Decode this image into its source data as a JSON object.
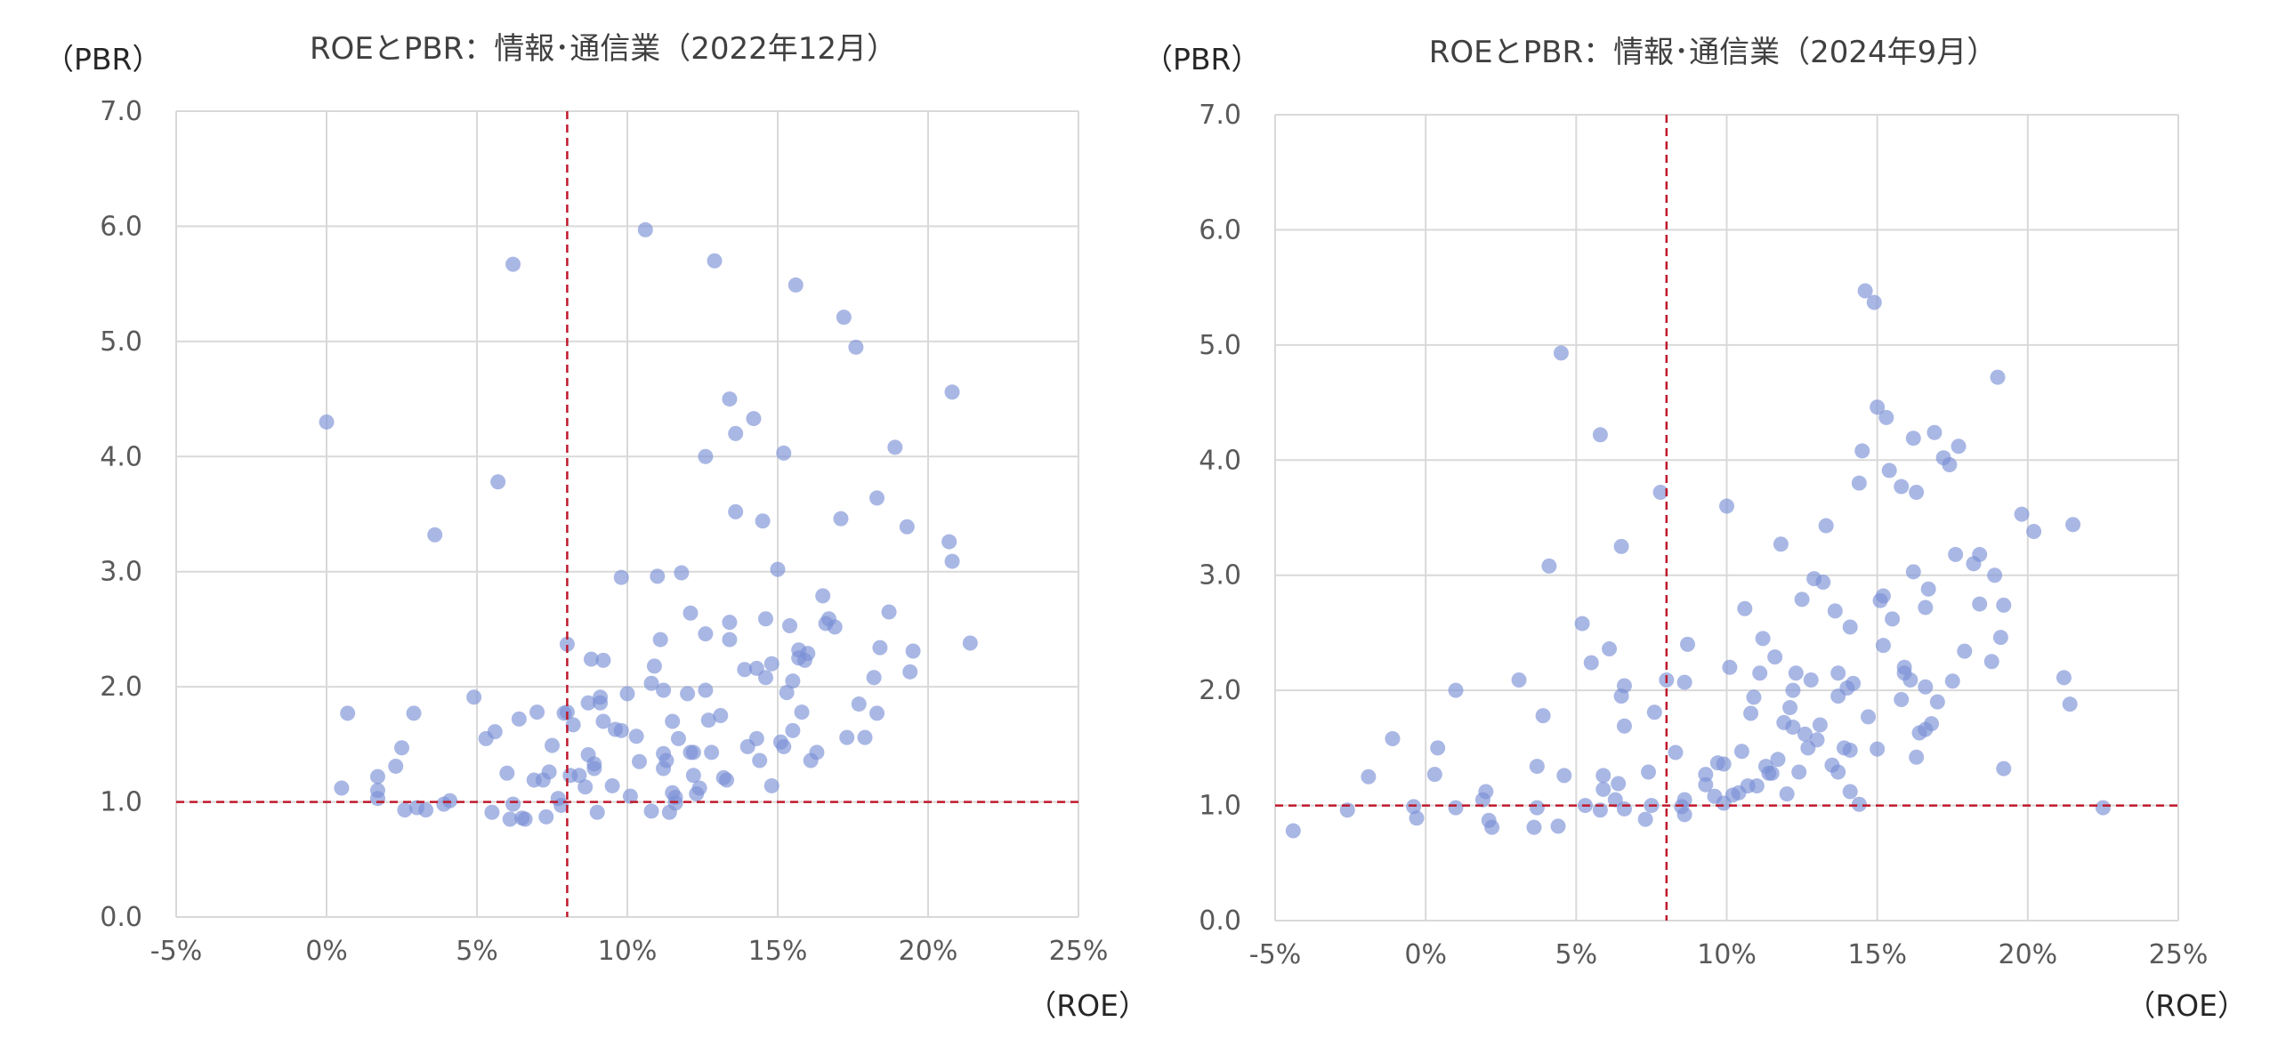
{
  "chart_data": [
    {
      "type": "scatter",
      "title": "ROEとPBR：情報･通信業（2022年12月）",
      "xlabel": "（ROE）",
      "ylabel": "（PBR）",
      "xlim": [
        -5,
        25
      ],
      "ylim": [
        0,
        7
      ],
      "x_ticks": [
        -5,
        0,
        5,
        10,
        15,
        20,
        25
      ],
      "y_ticks": [
        0,
        1,
        2,
        3,
        4,
        5,
        6,
        7
      ],
      "x_tick_labels": [
        "-5%",
        "0%",
        "5%",
        "10%",
        "15%",
        "20%",
        "25%"
      ],
      "y_tick_labels": [
        "0.0",
        "1.0",
        "2.0",
        "3.0",
        "4.0",
        "5.0",
        "6.0",
        "7.0"
      ],
      "grid": "vertical",
      "reference_lines": {
        "x": 8,
        "y": 1.0
      },
      "colors": {
        "points": "#7b91d6",
        "reference": "#c0192c",
        "grid": "#d9d9d9"
      },
      "points": [
        [
          0.0,
          4.3
        ],
        [
          0.5,
          1.12
        ],
        [
          0.7,
          1.77
        ],
        [
          1.7,
          1.22
        ],
        [
          1.7,
          1.1
        ],
        [
          1.7,
          1.03
        ],
        [
          2.3,
          1.31
        ],
        [
          2.5,
          1.47
        ],
        [
          2.6,
          0.93
        ],
        [
          2.9,
          1.77
        ],
        [
          3.0,
          0.95
        ],
        [
          3.3,
          0.93
        ],
        [
          3.6,
          3.32
        ],
        [
          3.9,
          0.98
        ],
        [
          4.1,
          1.01
        ],
        [
          4.9,
          1.91
        ],
        [
          5.3,
          1.55
        ],
        [
          5.5,
          0.91
        ],
        [
          5.6,
          1.61
        ],
        [
          5.7,
          3.78
        ],
        [
          6.0,
          1.25
        ],
        [
          6.1,
          0.85
        ],
        [
          6.2,
          5.67
        ],
        [
          6.2,
          0.98
        ],
        [
          6.4,
          1.72
        ],
        [
          6.5,
          0.86
        ],
        [
          6.6,
          0.85
        ],
        [
          6.9,
          1.19
        ],
        [
          7.0,
          1.78
        ],
        [
          7.2,
          1.19
        ],
        [
          7.3,
          0.87
        ],
        [
          7.4,
          1.26
        ],
        [
          7.5,
          1.49
        ],
        [
          7.7,
          1.03
        ],
        [
          7.8,
          0.97
        ],
        [
          7.9,
          1.77
        ],
        [
          8.0,
          1.78
        ],
        [
          8.0,
          2.37
        ],
        [
          8.1,
          1.23
        ],
        [
          8.2,
          1.67
        ],
        [
          8.4,
          1.23
        ],
        [
          8.6,
          1.13
        ],
        [
          8.7,
          1.86
        ],
        [
          8.7,
          1.41
        ],
        [
          8.8,
          2.24
        ],
        [
          8.9,
          1.33
        ],
        [
          8.9,
          1.29
        ],
        [
          9.0,
          0.91
        ],
        [
          9.1,
          1.86
        ],
        [
          9.1,
          1.91
        ],
        [
          9.2,
          2.23
        ],
        [
          9.2,
          1.7
        ],
        [
          9.5,
          1.14
        ],
        [
          9.8,
          2.95
        ],
        [
          9.8,
          1.62
        ],
        [
          10.0,
          1.94
        ],
        [
          10.1,
          1.05
        ],
        [
          10.3,
          1.57
        ],
        [
          10.4,
          1.35
        ],
        [
          10.6,
          5.97
        ],
        [
          10.8,
          0.92
        ],
        [
          10.8,
          2.03
        ],
        [
          10.9,
          2.18
        ],
        [
          11.0,
          2.96
        ],
        [
          11.1,
          2.41
        ],
        [
          11.2,
          1.29
        ],
        [
          11.2,
          1.42
        ],
        [
          11.2,
          1.97
        ],
        [
          11.4,
          0.91
        ],
        [
          11.5,
          1.7
        ],
        [
          11.5,
          1.08
        ],
        [
          11.6,
          1.04
        ],
        [
          11.6,
          0.99
        ],
        [
          11.7,
          1.55
        ],
        [
          11.8,
          2.99
        ],
        [
          12.0,
          1.94
        ],
        [
          12.1,
          2.64
        ],
        [
          12.2,
          1.43
        ],
        [
          12.2,
          1.23
        ],
        [
          12.3,
          1.07
        ],
        [
          12.4,
          1.12
        ],
        [
          12.6,
          4.0
        ],
        [
          12.6,
          2.46
        ],
        [
          12.6,
          1.97
        ],
        [
          12.7,
          1.71
        ],
        [
          12.8,
          1.43
        ],
        [
          12.9,
          5.7
        ],
        [
          13.1,
          1.75
        ],
        [
          13.3,
          1.19
        ],
        [
          13.4,
          4.5
        ],
        [
          13.4,
          2.56
        ],
        [
          13.4,
          2.41
        ],
        [
          13.6,
          4.2
        ],
        [
          13.6,
          3.52
        ],
        [
          13.9,
          2.15
        ],
        [
          14.0,
          1.48
        ],
        [
          14.2,
          4.33
        ],
        [
          14.3,
          2.16
        ],
        [
          14.4,
          1.36
        ],
        [
          14.5,
          3.44
        ],
        [
          14.6,
          2.59
        ],
        [
          14.6,
          2.08
        ],
        [
          14.8,
          2.2
        ],
        [
          14.8,
          1.14
        ],
        [
          15.0,
          3.02
        ],
        [
          15.1,
          1.52
        ],
        [
          15.2,
          4.03
        ],
        [
          15.3,
          1.95
        ],
        [
          15.4,
          2.53
        ],
        [
          15.5,
          2.05
        ],
        [
          15.5,
          1.62
        ],
        [
          15.6,
          5.49
        ],
        [
          15.7,
          2.32
        ],
        [
          15.8,
          1.78
        ],
        [
          15.9,
          2.23
        ],
        [
          16.1,
          1.36
        ],
        [
          16.3,
          1.43
        ],
        [
          16.5,
          2.79
        ],
        [
          16.6,
          2.55
        ],
        [
          16.7,
          2.59
        ],
        [
          16.9,
          2.52
        ],
        [
          17.1,
          3.46
        ],
        [
          17.2,
          5.21
        ],
        [
          17.3,
          1.56
        ],
        [
          17.6,
          4.95
        ],
        [
          17.7,
          1.85
        ],
        [
          17.9,
          1.56
        ],
        [
          18.2,
          2.08
        ],
        [
          18.3,
          3.64
        ],
        [
          18.3,
          1.77
        ],
        [
          18.4,
          2.34
        ],
        [
          18.7,
          2.65
        ],
        [
          18.9,
          4.08
        ],
        [
          19.3,
          3.39
        ],
        [
          19.4,
          2.13
        ],
        [
          19.5,
          2.31
        ],
        [
          20.7,
          3.26
        ],
        [
          20.8,
          4.56
        ],
        [
          20.8,
          3.09
        ],
        [
          21.4,
          2.38
        ],
        [
          15.7,
          2.25
        ],
        [
          13.2,
          1.21
        ],
        [
          11.3,
          1.36
        ],
        [
          14.3,
          1.55
        ],
        [
          16.0,
          2.29
        ],
        [
          9.6,
          1.63
        ],
        [
          12.1,
          1.43
        ],
        [
          15.2,
          1.48
        ]
      ]
    },
    {
      "type": "scatter",
      "title": "ROEとPBR：情報･通信業（2024年9月）",
      "xlabel": "（ROE）",
      "ylabel": "（PBR）",
      "xlim": [
        -5,
        25
      ],
      "ylim": [
        0,
        7
      ],
      "x_ticks": [
        -5,
        0,
        5,
        10,
        15,
        20,
        25
      ],
      "y_ticks": [
        0,
        1,
        2,
        3,
        4,
        5,
        6,
        7
      ],
      "x_tick_labels": [
        "-5%",
        "0%",
        "5%",
        "10%",
        "15%",
        "20%",
        "25%"
      ],
      "y_tick_labels": [
        "0.0",
        "1.0",
        "2.0",
        "3.0",
        "4.0",
        "5.0",
        "6.0",
        "7.0"
      ],
      "grid": "vertical",
      "reference_lines": {
        "x": 8,
        "y": 1.0
      },
      "colors": {
        "points": "#7b91d6",
        "reference": "#c0192c",
        "grid": "#d9d9d9"
      },
      "points": [
        [
          -4.4,
          0.78
        ],
        [
          -2.6,
          0.96
        ],
        [
          -1.9,
          1.25
        ],
        [
          -1.1,
          1.58
        ],
        [
          -0.4,
          0.99
        ],
        [
          -0.3,
          0.89
        ],
        [
          0.3,
          1.27
        ],
        [
          0.4,
          1.5
        ],
        [
          1.0,
          0.98
        ],
        [
          1.0,
          2.0
        ],
        [
          1.9,
          1.05
        ],
        [
          2.0,
          1.12
        ],
        [
          2.1,
          0.87
        ],
        [
          2.2,
          0.81
        ],
        [
          3.1,
          2.09
        ],
        [
          3.6,
          0.81
        ],
        [
          3.7,
          1.34
        ],
        [
          3.7,
          0.98
        ],
        [
          3.9,
          1.78
        ],
        [
          4.1,
          3.08
        ],
        [
          4.4,
          0.82
        ],
        [
          4.5,
          4.93
        ],
        [
          4.6,
          1.26
        ],
        [
          5.2,
          2.58
        ],
        [
          5.3,
          1.0
        ],
        [
          5.5,
          2.24
        ],
        [
          5.8,
          4.22
        ],
        [
          5.8,
          0.96
        ],
        [
          5.9,
          1.26
        ],
        [
          5.9,
          1.14
        ],
        [
          6.1,
          2.36
        ],
        [
          6.3,
          1.05
        ],
        [
          6.4,
          1.19
        ],
        [
          6.5,
          1.95
        ],
        [
          6.5,
          3.25
        ],
        [
          6.6,
          0.97
        ],
        [
          6.6,
          2.04
        ],
        [
          6.6,
          1.69
        ],
        [
          7.3,
          0.88
        ],
        [
          7.4,
          1.29
        ],
        [
          7.5,
          1.0
        ],
        [
          7.6,
          1.81
        ],
        [
          7.8,
          3.72
        ],
        [
          8.0,
          2.09
        ],
        [
          8.3,
          1.46
        ],
        [
          8.5,
          0.99
        ],
        [
          8.6,
          1.05
        ],
        [
          8.6,
          0.92
        ],
        [
          8.6,
          2.07
        ],
        [
          8.7,
          2.4
        ],
        [
          9.3,
          1.27
        ],
        [
          9.3,
          1.18
        ],
        [
          9.7,
          1.37
        ],
        [
          9.9,
          1.36
        ],
        [
          9.9,
          1.02
        ],
        [
          10.0,
          3.6
        ],
        [
          10.1,
          2.2
        ],
        [
          10.2,
          1.09
        ],
        [
          10.4,
          1.11
        ],
        [
          10.5,
          1.47
        ],
        [
          10.6,
          2.71
        ],
        [
          10.7,
          1.17
        ],
        [
          10.8,
          1.8
        ],
        [
          10.9,
          1.94
        ],
        [
          11.0,
          1.17
        ],
        [
          11.1,
          2.15
        ],
        [
          11.2,
          2.45
        ],
        [
          11.3,
          1.34
        ],
        [
          11.4,
          1.28
        ],
        [
          11.5,
          1.28
        ],
        [
          11.6,
          2.29
        ],
        [
          11.7,
          1.4
        ],
        [
          11.8,
          3.27
        ],
        [
          11.9,
          1.72
        ],
        [
          12.0,
          1.1
        ],
        [
          12.1,
          1.85
        ],
        [
          12.2,
          2.0
        ],
        [
          12.3,
          2.15
        ],
        [
          12.4,
          1.29
        ],
        [
          12.5,
          2.79
        ],
        [
          12.6,
          1.62
        ],
        [
          12.7,
          1.5
        ],
        [
          12.8,
          2.09
        ],
        [
          12.9,
          2.97
        ],
        [
          13.0,
          1.57
        ],
        [
          13.1,
          1.7
        ],
        [
          13.2,
          2.94
        ],
        [
          13.3,
          3.43
        ],
        [
          13.5,
          1.35
        ],
        [
          13.6,
          2.69
        ],
        [
          13.7,
          2.15
        ],
        [
          13.7,
          1.29
        ],
        [
          13.9,
          1.5
        ],
        [
          14.0,
          2.02
        ],
        [
          14.1,
          1.12
        ],
        [
          14.1,
          1.48
        ],
        [
          14.1,
          2.55
        ],
        [
          14.2,
          2.06
        ],
        [
          14.4,
          1.01
        ],
        [
          14.4,
          3.8
        ],
        [
          14.5,
          4.08
        ],
        [
          14.6,
          5.47
        ],
        [
          14.7,
          1.77
        ],
        [
          14.9,
          5.37
        ],
        [
          15.0,
          4.46
        ],
        [
          15.0,
          1.49
        ],
        [
          15.1,
          2.78
        ],
        [
          15.2,
          2.39
        ],
        [
          15.3,
          4.37
        ],
        [
          15.4,
          3.91
        ],
        [
          15.5,
          2.62
        ],
        [
          15.8,
          3.77
        ],
        [
          15.9,
          2.15
        ],
        [
          15.9,
          2.2
        ],
        [
          16.1,
          2.09
        ],
        [
          16.2,
          4.19
        ],
        [
          16.2,
          3.03
        ],
        [
          16.3,
          3.72
        ],
        [
          16.3,
          1.42
        ],
        [
          16.4,
          1.63
        ],
        [
          16.6,
          1.66
        ],
        [
          16.6,
          2.72
        ],
        [
          16.7,
          2.88
        ],
        [
          16.8,
          1.71
        ],
        [
          16.9,
          4.24
        ],
        [
          17.0,
          1.9
        ],
        [
          17.2,
          4.02
        ],
        [
          17.4,
          3.96
        ],
        [
          17.5,
          2.08
        ],
        [
          17.7,
          4.12
        ],
        [
          17.9,
          2.34
        ],
        [
          18.2,
          3.1
        ],
        [
          18.4,
          2.75
        ],
        [
          18.8,
          2.25
        ],
        [
          18.9,
          3.0
        ],
        [
          19.0,
          4.72
        ],
        [
          19.1,
          2.46
        ],
        [
          19.2,
          1.32
        ],
        [
          19.2,
          2.74
        ],
        [
          19.8,
          3.53
        ],
        [
          20.2,
          3.38
        ],
        [
          21.2,
          2.11
        ],
        [
          21.4,
          1.88
        ],
        [
          21.5,
          3.44
        ],
        [
          22.5,
          0.98
        ],
        [
          16.6,
          2.03
        ],
        [
          17.6,
          3.18
        ],
        [
          18.4,
          3.18
        ],
        [
          12.2,
          1.68
        ],
        [
          13.7,
          1.95
        ],
        [
          9.6,
          1.08
        ],
        [
          15.2,
          2.82
        ],
        [
          15.8,
          1.92
        ]
      ]
    }
  ]
}
